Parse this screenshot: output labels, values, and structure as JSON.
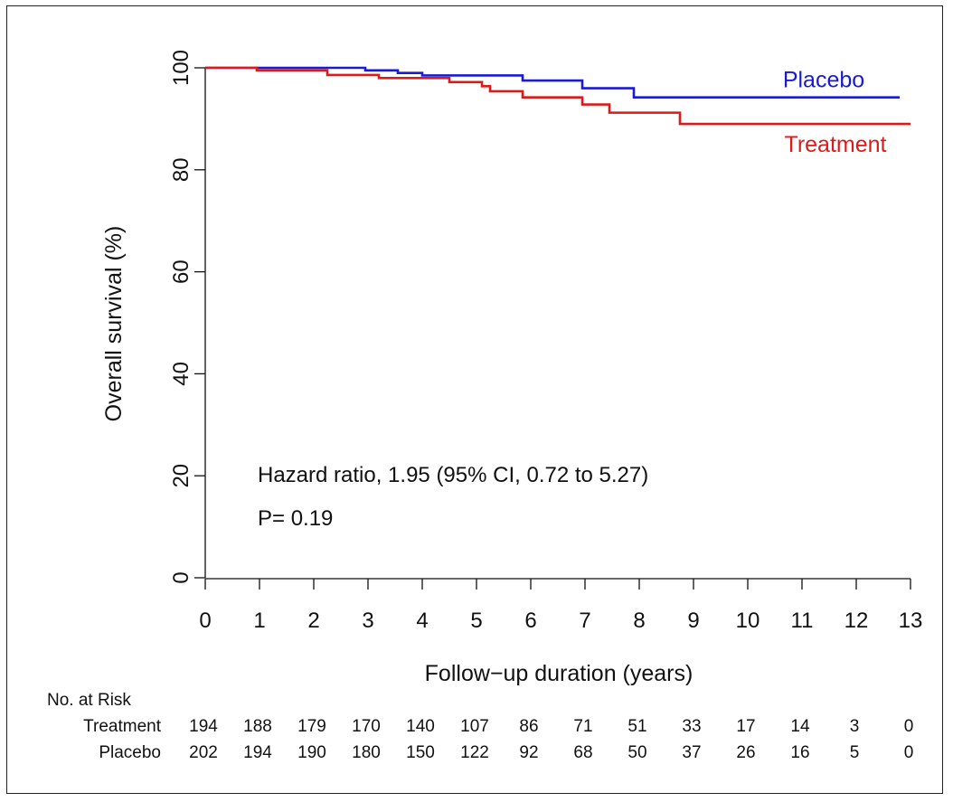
{
  "chart_data": {
    "type": "line",
    "title": "",
    "xlabel": "Follow−up duration (years)",
    "ylabel": "Overall survival (%)",
    "xlim": [
      0,
      13
    ],
    "ylim": [
      0,
      100
    ],
    "x_ticks": [
      "0",
      "1",
      "2",
      "3",
      "4",
      "5",
      "6",
      "7",
      "8",
      "9",
      "10",
      "11",
      "12",
      "13"
    ],
    "y_ticks": [
      "0",
      "20",
      "40",
      "60",
      "80",
      "100"
    ],
    "grid": false,
    "series": [
      {
        "name": "Placebo",
        "color": "#1a1ad6",
        "step": true,
        "x": [
          0,
          2.95,
          3.55,
          4.0,
          5.85,
          6.95,
          7.9,
          12.8
        ],
        "y": [
          100,
          99.5,
          99.0,
          98.5,
          97.5,
          96.0,
          94.2,
          94.2
        ]
      },
      {
        "name": "Treatment",
        "color": "#dd1a1a",
        "step": true,
        "x": [
          0,
          0.95,
          2.25,
          3.2,
          4.5,
          5.1,
          5.25,
          5.85,
          6.95,
          7.45,
          8.75,
          13.0
        ],
        "y": [
          100,
          99.5,
          98.6,
          98.0,
          97.2,
          96.4,
          95.4,
          94.2,
          92.8,
          91.2,
          89.0,
          89.0
        ]
      }
    ],
    "annotations": {
      "hazard": "Hazard ratio, 1.95  (95% CI, 0.72 to 5.27)",
      "pvalue": "P= 0.19"
    },
    "risk_table": {
      "header": "No. at Risk",
      "times": [
        0,
        1,
        2,
        3,
        4,
        5,
        6,
        7,
        8,
        9,
        10,
        11,
        12,
        13
      ],
      "rows": [
        {
          "label": "Treatment",
          "values": [
            "194",
            "188",
            "179",
            "170",
            "140",
            "107",
            "86",
            "71",
            "51",
            "33",
            "17",
            "14",
            "3",
            "0"
          ]
        },
        {
          "label": "Placebo",
          "values": [
            "202",
            "194",
            "190",
            "180",
            "150",
            "122",
            "92",
            "68",
            "50",
            "37",
            "26",
            "16",
            "5",
            "0"
          ]
        }
      ]
    }
  }
}
